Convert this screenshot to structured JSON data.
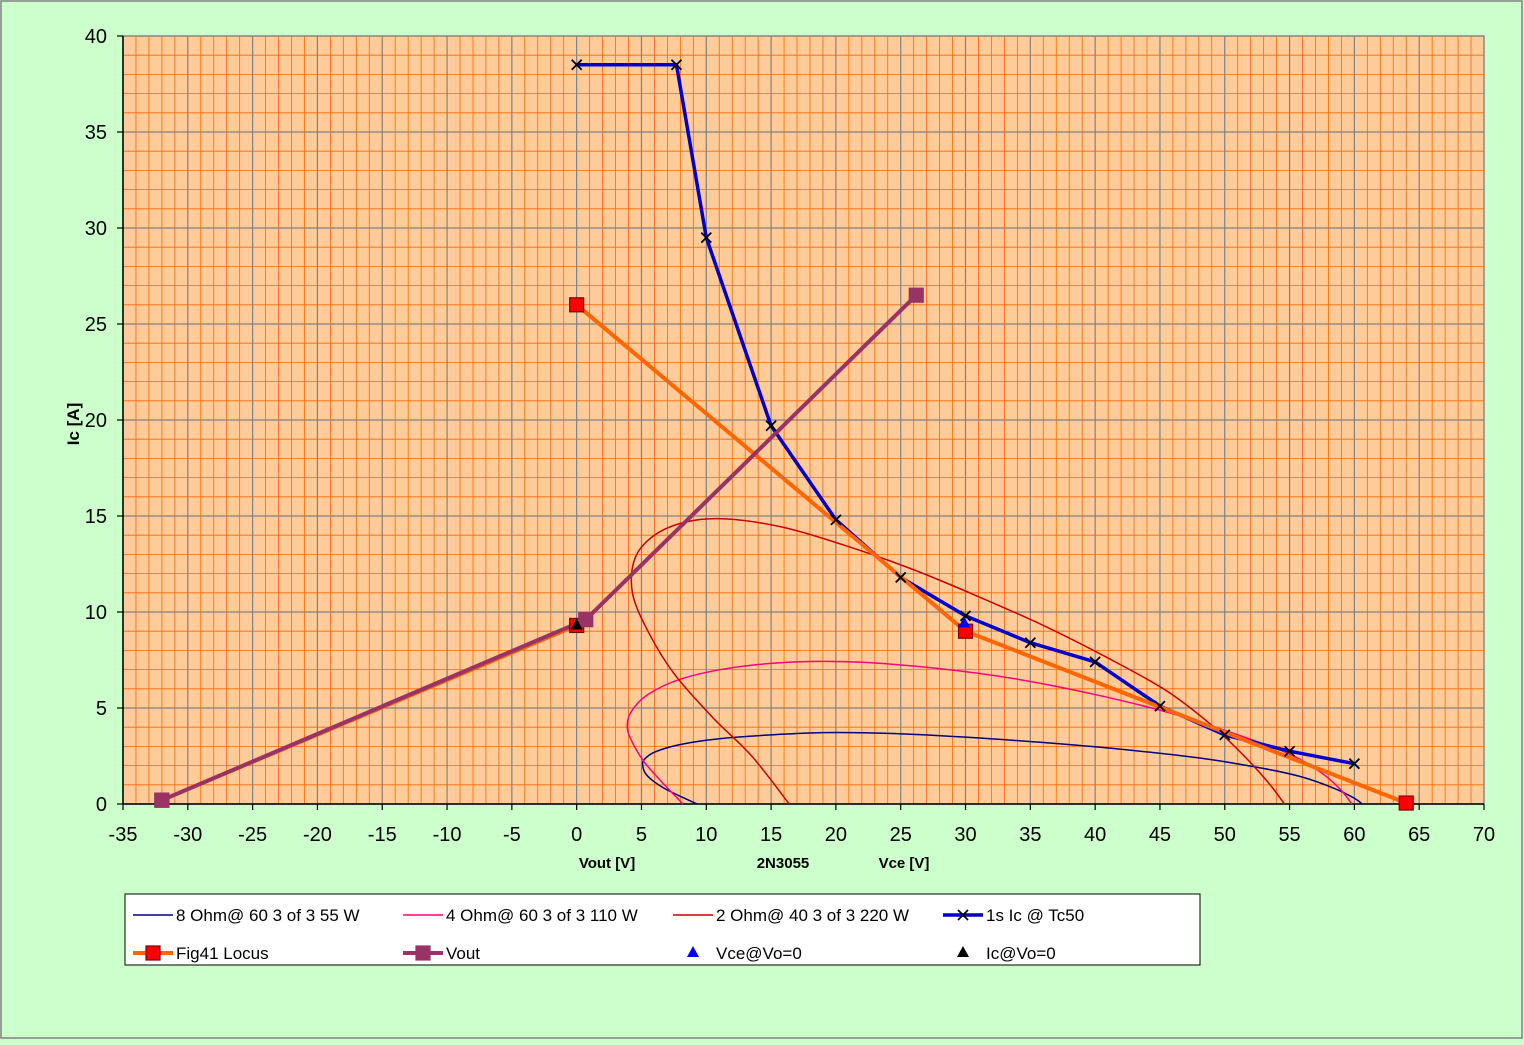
{
  "chart_data": {
    "type": "scatter",
    "title": "",
    "ylabel": "Ic [A]",
    "xlabels": [
      "Vout [V]",
      "2N3055",
      "Vce [V]"
    ],
    "xlim": [
      -35,
      70
    ],
    "ylim": [
      0,
      40
    ],
    "x_major_step": 5,
    "y_major_step": 5,
    "x_minor_step": 1,
    "y_minor_step": 1,
    "x_ticks": [
      "-35",
      "-30",
      "-25",
      "-20",
      "-15",
      "-10",
      "-5",
      "0",
      "5",
      "10",
      "15",
      "20",
      "25",
      "30",
      "35",
      "40",
      "45",
      "50",
      "55",
      "60",
      "65",
      "70"
    ],
    "y_ticks": [
      "0",
      "5",
      "10",
      "15",
      "20",
      "25",
      "30",
      "35",
      "40"
    ],
    "grid": true,
    "legend_position": "bottom",
    "colors": {
      "background": "#ccffcc",
      "plot_background": "#ffcc99",
      "minor_grid": "#ff6600",
      "major_grid": "#808080"
    },
    "series": [
      {
        "name": "8 Ohm@ 60 3 of 3 55 W",
        "kind": "ellipse",
        "color": "#000080",
        "width": 1.5,
        "x": [
          9.3,
          8.0,
          6.8,
          5.9,
          5.3,
          5.1,
          5.2,
          6.0,
          8.0,
          11.0,
          15.0,
          19.0,
          24.0,
          30.0,
          36.0,
          42.0,
          48.0,
          53.0,
          56.0,
          58.5,
          60.0,
          60.6
        ],
        "y": [
          0.0,
          0.4,
          0.8,
          1.2,
          1.6,
          2.0,
          2.3,
          2.7,
          3.1,
          3.4,
          3.6,
          3.72,
          3.68,
          3.48,
          3.2,
          2.85,
          2.4,
          1.85,
          1.4,
          0.8,
          0.3,
          0.0
        ]
      },
      {
        "name": "4 Ohm@ 60 3 of 3 110 W",
        "kind": "ellipse",
        "color": "#ff0080",
        "width": 1.5,
        "x": [
          8.2,
          6.5,
          5.2,
          4.3,
          3.9,
          4.2,
          5.5,
          8.0,
          12.0,
          17.0,
          22.0,
          28.0,
          34.0,
          40.0,
          46.0,
          51.0,
          55.0,
          57.5,
          59.0,
          59.8
        ],
        "y": [
          0.0,
          1.2,
          2.2,
          3.2,
          4.0,
          4.8,
          5.7,
          6.5,
          7.1,
          7.4,
          7.38,
          7.05,
          6.5,
          5.7,
          4.7,
          3.6,
          2.6,
          1.6,
          0.7,
          0.0
        ]
      },
      {
        "name": "2 Ohm@ 40 3 of 3 220 W",
        "kind": "ellipse",
        "color": "#cc0000",
        "width": 1.5,
        "x": [
          16.4,
          13.5,
          10.5,
          7.5,
          5.5,
          4.3,
          4.5,
          6.0,
          8.5,
          11.5,
          16.0,
          21.0,
          26.0,
          31.0,
          36.0,
          41.0,
          45.5,
          49.0,
          51.5,
          53.5,
          54.6
        ],
        "y": [
          0.0,
          2.5,
          4.5,
          6.8,
          9.0,
          11.0,
          12.8,
          14.0,
          14.7,
          14.85,
          14.4,
          13.4,
          12.2,
          10.8,
          9.3,
          7.6,
          5.9,
          4.1,
          2.5,
          1.0,
          0.0
        ]
      },
      {
        "name": "1s Ic @ Tc50",
        "kind": "line",
        "color": "#0000cc",
        "width": 3.5,
        "marker": "x",
        "marker_color": "#000000",
        "x": [
          0,
          7.7,
          10,
          15,
          20,
          25,
          30,
          35,
          40,
          45,
          50,
          55,
          60
        ],
        "y": [
          38.5,
          38.5,
          29.5,
          19.7,
          14.8,
          11.8,
          9.8,
          8.4,
          7.4,
          5.1,
          3.6,
          2.75,
          2.1
        ]
      },
      {
        "name": "Fig41 Locus",
        "kind": "line",
        "color": "#ff6600",
        "width": 4,
        "marker": "square",
        "marker_color": "#ff0000",
        "marker_border": "#800000",
        "x": [
          -32,
          0,
          null,
          0,
          30,
          64
        ],
        "y": [
          0.2,
          9.3,
          null,
          26,
          9.0,
          0.05
        ]
      },
      {
        "name": "Vout",
        "kind": "line",
        "color": "#993366",
        "width": 4,
        "marker": "square",
        "marker_color": "#993366",
        "x": [
          -32,
          0.7,
          26.2
        ],
        "y": [
          0.2,
          9.6,
          26.5
        ]
      },
      {
        "name": "Vce@Vo=0",
        "kind": "points",
        "color": "#0000ff",
        "marker": "triangle",
        "x": [
          29.9
        ],
        "y": [
          9.4
        ]
      },
      {
        "name": "Ic@Vo=0",
        "kind": "points",
        "color": "#000000",
        "marker": "triangle",
        "x": [
          0
        ],
        "y": [
          9.3
        ]
      }
    ]
  }
}
